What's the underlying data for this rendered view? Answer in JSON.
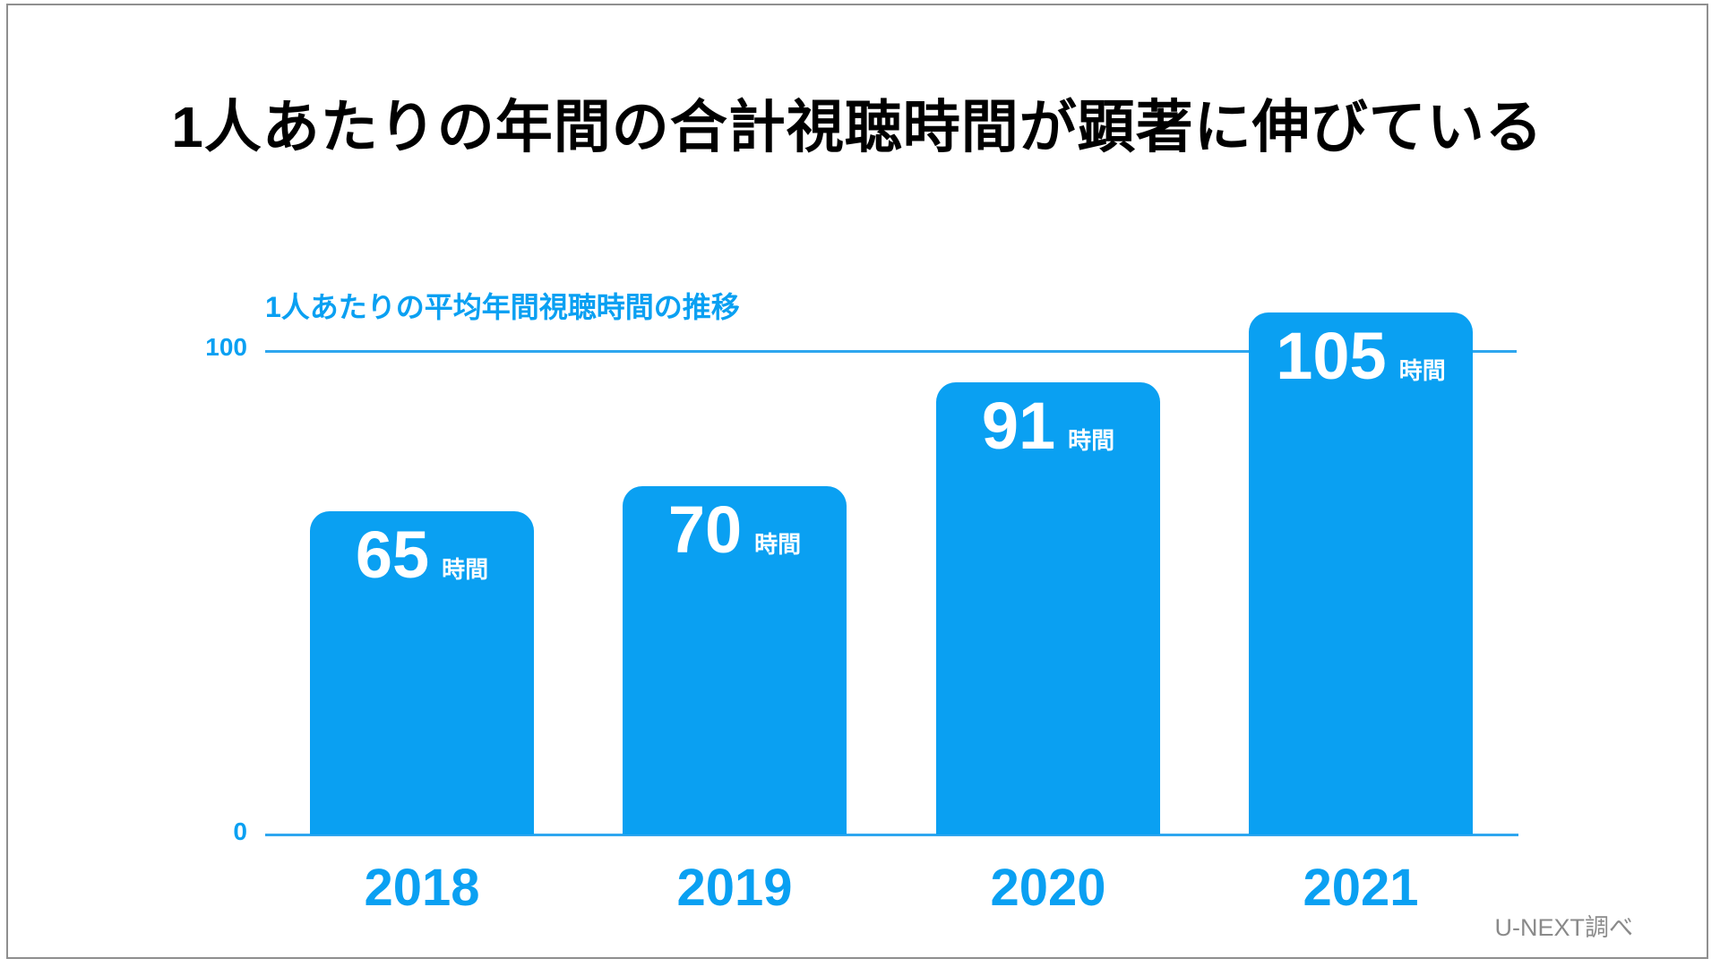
{
  "title": "1人あたりの年間の合計視聴時間が顕著に伸びている",
  "source": "U-NEXT調べ",
  "accent_color": "#0aa0f2",
  "chart_data": {
    "type": "bar",
    "title": "1人あたりの平均年間視聴時間の推移",
    "categories": [
      "2018",
      "2019",
      "2020",
      "2021"
    ],
    "values": [
      65,
      70,
      91,
      105
    ],
    "value_unit": "時間",
    "yticks": [
      0,
      100
    ],
    "ylim": [
      0,
      113
    ],
    "bar_color": "#0aa0f2",
    "value_label_color": "#ffffff",
    "grid": "single horizontal line at y=100",
    "legend": "none",
    "xlabel": "",
    "ylabel": ""
  }
}
